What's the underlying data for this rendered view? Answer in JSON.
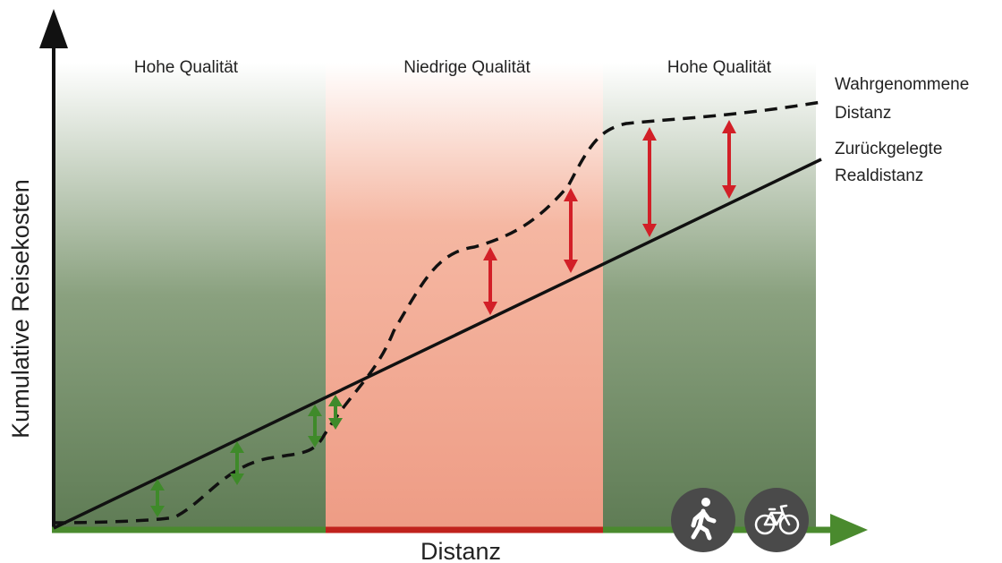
{
  "axes": {
    "y_label": "Kumulative Reisekosten",
    "x_label": "Distanz"
  },
  "zones": [
    {
      "label": "Hohe Qualität",
      "quality": "high",
      "color": "#5c7a52"
    },
    {
      "label": "Niedrige Qualität",
      "quality": "low",
      "color": "#e57656"
    },
    {
      "label": "Hohe Qualität",
      "quality": "high",
      "color": "#5c7a52"
    }
  ],
  "lines": {
    "perceived": {
      "label_line1": "Wahrgenommene",
      "label_line2": "Distanz",
      "style": "dashed"
    },
    "real": {
      "label_line1": "Zurückgelegte",
      "label_line2": "Realdistanz",
      "style": "solid"
    }
  },
  "colors": {
    "axis": "#111111",
    "x_axis_high": "#4a8a2e",
    "x_axis_low": "#c0221c",
    "arrow_green": "#3f8a2a",
    "arrow_red": "#d21f27",
    "icon_bg": "#4a4a4a"
  },
  "icons": [
    "pedestrian-icon",
    "bicycle-icon"
  ]
}
